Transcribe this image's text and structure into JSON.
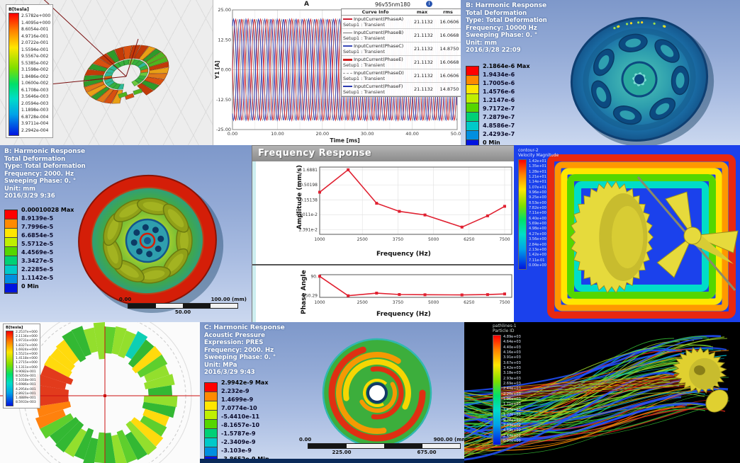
{
  "panels": {
    "torus": {
      "legend_title": "B[tesla]",
      "legend_values": [
        "2.5782e+000",
        "1.4095e+000",
        "8.6054e-001",
        "4.9716e-001",
        "2.0722e-001",
        "1.5594e-001",
        "9.5567e-002",
        "5.5385e-002",
        "3.1598e-002",
        "1.8486e-002",
        "1.0600e-002",
        "6.1708e-003",
        "3.5646e-003",
        "2.0594e-003",
        "1.1898e-003",
        "6.8728e-004",
        "3.9711e-004",
        "2.2942e-004"
      ]
    },
    "waveform": {
      "window_label": "A",
      "title": "96v55nm180",
      "ylabel": "Y1 [A]",
      "xlabel": "Time [ms]",
      "yticks": [
        "25.00",
        "12.50",
        "0.00",
        "-12.50",
        "-25.00"
      ],
      "xticks": [
        "0.00",
        "10.00",
        "20.00",
        "30.00",
        "40.00",
        "50.00"
      ],
      "table": {
        "headers": [
          "Curve Info",
          "max",
          "rms"
        ],
        "setup_line": "Setup1 : Transient",
        "rows": [
          {
            "name": "InputCurrent(PhaseA)",
            "max": "21.1132",
            "rms": "16.0606"
          },
          {
            "name": "InputCurrent(PhaseB)",
            "max": "21.1132",
            "rms": "16.0668"
          },
          {
            "name": "InputCurrent(PhaseC)",
            "max": "21.1132",
            "rms": "14.8750"
          },
          {
            "name": "InputCurrent(PhaseE)",
            "max": "21.1132",
            "rms": "16.0668"
          },
          {
            "name": "InputCurrent(PhaseD)",
            "max": "21.1132",
            "rms": "16.0606"
          },
          {
            "name": "InputCurrent(PhaseF)",
            "max": "21.1132",
            "rms": "14.8750"
          }
        ]
      }
    },
    "harmonic_top": {
      "info": [
        "B: Harmonic Response",
        "Total Deformation",
        "Type: Total Deformation",
        "Frequency: 10000 Hz",
        "Sweeping Phase: 0. °",
        "Unit: mm",
        "2016/3/28 22:09"
      ],
      "legend": [
        "2.1864e-6 Max",
        "1.9434e-6",
        "1.7005e-6",
        "1.4576e-6",
        "1.2147e-6",
        "9.7172e-7",
        "7.2879e-7",
        "4.8586e-7",
        "2.4293e-7",
        "0 Min"
      ]
    },
    "harmonic_mid": {
      "info": [
        "B: Harmonic Response",
        "Total Deformation",
        "Type: Total Deformation",
        "Frequency: 2000. Hz",
        "Sweeping Phase: 0. °",
        "Unit: mm",
        "2016/3/29 9:36"
      ],
      "legend": [
        "0.00010028 Max",
        "8.9139e-5",
        "7.7996e-5",
        "6.6854e-5",
        "5.5712e-5",
        "4.4569e-5",
        "3.3427e-5",
        "2.2285e-5",
        "1.1142e-5",
        "0 Min"
      ],
      "scale": {
        "left": "0.00",
        "right": "100.00 (mm)",
        "center": "50.00"
      }
    },
    "freq_window": {
      "title": "Frequency Response",
      "amp_ylabel": "Amplitude (mm/s)",
      "amp_yticks": [
        "1.6881",
        "0.50198",
        "0.15138",
        "4.6011e-2",
        "1.391e-2"
      ],
      "xlabel": "Frequency (Hz)",
      "xticks": [
        "1000",
        "2500",
        "3750",
        "5000",
        "6250",
        "7500"
      ],
      "phase_ylabel": "Phase Angle",
      "phase_yticks": [
        "90.",
        "-150.29"
      ]
    },
    "cfd": {
      "legend_title_1": "contour-2",
      "legend_title_2": "Velocity Magnitude",
      "legend_values": [
        "1.42e+01",
        "1.35e+01",
        "1.28e+01",
        "1.21e+01",
        "1.14e+01",
        "1.07e+01",
        "9.96e+00",
        "9.25e+00",
        "8.53e+00",
        "7.82e+00",
        "7.11e+00",
        "6.40e+00",
        "5.69e+00",
        "4.98e+00",
        "4.27e+00",
        "3.56e+00",
        "2.84e+00",
        "2.13e+00",
        "1.42e+00",
        "7.11e-01",
        "0.00e+00"
      ]
    },
    "flux_ring": {
      "legend_title": "B[tesla]",
      "legend_values": [
        "2.2537e+000",
        "2.1134e+000",
        "1.9731e+000",
        "1.8327e+000",
        "1.6924e+000",
        "1.5521e+000",
        "1.4118e+000",
        "1.2715e+000",
        "1.1311e+000",
        "9.9082e-001",
        "8.5050e-001",
        "7.1018e-001",
        "5.6986e-001",
        "4.2954e-001",
        "2.8921e-001",
        "1.4889e-001",
        "8.5933e-003"
      ]
    },
    "acoustic": {
      "info": [
        "C: Harmonic Response",
        "Acoustic Pressure",
        "Expression: PRES",
        "Frequency: 2000. Hz",
        "Sweeping Phase: 0. °",
        "Unit: MPa",
        "2016/3/29 9:43"
      ],
      "legend": [
        "2.9942e-9 Max",
        "2.232e-9",
        "1.4699e-9",
        "7.0774e-10",
        "-5.4410e-11",
        "-8.1657e-10",
        "-1.5787e-9",
        "-2.3409e-9",
        "-3.103e-9",
        "-3.8652e-9 Min"
      ],
      "scale": {
        "left": "0.00",
        "right": "900.00 (mm)",
        "q1": "225.00",
        "q3": "675.00"
      }
    },
    "pathlines": {
      "legend_title_1": "pathlines-1",
      "legend_title_2": "Particle ID",
      "legend_values": [
        "4.89e+03",
        "4.64e+03",
        "4.40e+03",
        "4.16e+03",
        "3.91e+03",
        "3.67e+03",
        "3.42e+03",
        "3.18e+03",
        "2.93e+03",
        "2.69e+03",
        "2.44e+03",
        "2.20e+03",
        "1.96e+03",
        "1.71e+03",
        "1.47e+03",
        "1.22e+03",
        "9.78e+02",
        "7.33e+02",
        "4.89e+02",
        "2.44e+02",
        "0.00e+00"
      ]
    }
  },
  "chart_data": [
    {
      "type": "line",
      "title": "96v55nm180",
      "xlabel": "Time [ms]",
      "ylabel": "Y1 [A]",
      "xlim": [
        0,
        50
      ],
      "ylim": [
        -25,
        25
      ],
      "waveform": "sinusoid",
      "amplitude": 21.1132,
      "period_ms": 2.78,
      "series": [
        {
          "name": "InputCurrent(PhaseA)",
          "color": "#cc2233",
          "width": 1.1,
          "phase_deg": 0,
          "max": 21.1132,
          "rms": 16.0606
        },
        {
          "name": "InputCurrent(PhaseB)",
          "color": "#777777",
          "width": 0.7,
          "phase_deg": 120,
          "max": 21.1132,
          "rms": 16.0668
        },
        {
          "name": "InputCurrent(PhaseC)",
          "color": "#3a4ab8",
          "width": 1.1,
          "phase_deg": 240,
          "max": 21.1132,
          "rms": 14.875
        },
        {
          "name": "InputCurrent(PhaseE)",
          "color": "#d02020",
          "width": 1.1,
          "phase_deg": 180,
          "max": 21.1132,
          "rms": 16.0668
        },
        {
          "name": "InputCurrent(PhaseD)",
          "color": "#9a9a9a",
          "width": 0.7,
          "phase_deg": 300,
          "max": 21.1132,
          "rms": 16.0606
        },
        {
          "name": "InputCurrent(PhaseF)",
          "color": "#2a3ab0",
          "width": 1.1,
          "phase_deg": 60,
          "max": 21.1132,
          "rms": 14.875
        }
      ]
    },
    {
      "type": "line",
      "title": "Frequency Response - Amplitude",
      "xlabel": "Frequency (Hz)",
      "ylabel": "Amplitude (mm/s)",
      "yscale": "log",
      "xlim": [
        1000,
        7750
      ],
      "x": [
        1000,
        2000,
        3000,
        3800,
        4700,
        6000,
        6900,
        7500
      ],
      "y": [
        0.28,
        1.6881,
        0.115,
        0.06,
        0.045,
        0.017,
        0.042,
        0.09
      ],
      "color": "#e02030"
    },
    {
      "type": "line",
      "title": "Frequency Response - Phase",
      "xlabel": "Frequency (Hz)",
      "ylabel": "Phase Angle",
      "xlim": [
        1000,
        7750
      ],
      "ylim": [
        -170,
        110
      ],
      "x": [
        1000,
        2000,
        3000,
        3800,
        4700,
        6000,
        6900,
        7500
      ],
      "y": [
        90,
        -150,
        -118,
        -135,
        -138,
        -140,
        -136,
        -128
      ],
      "color": "#e02030"
    }
  ]
}
